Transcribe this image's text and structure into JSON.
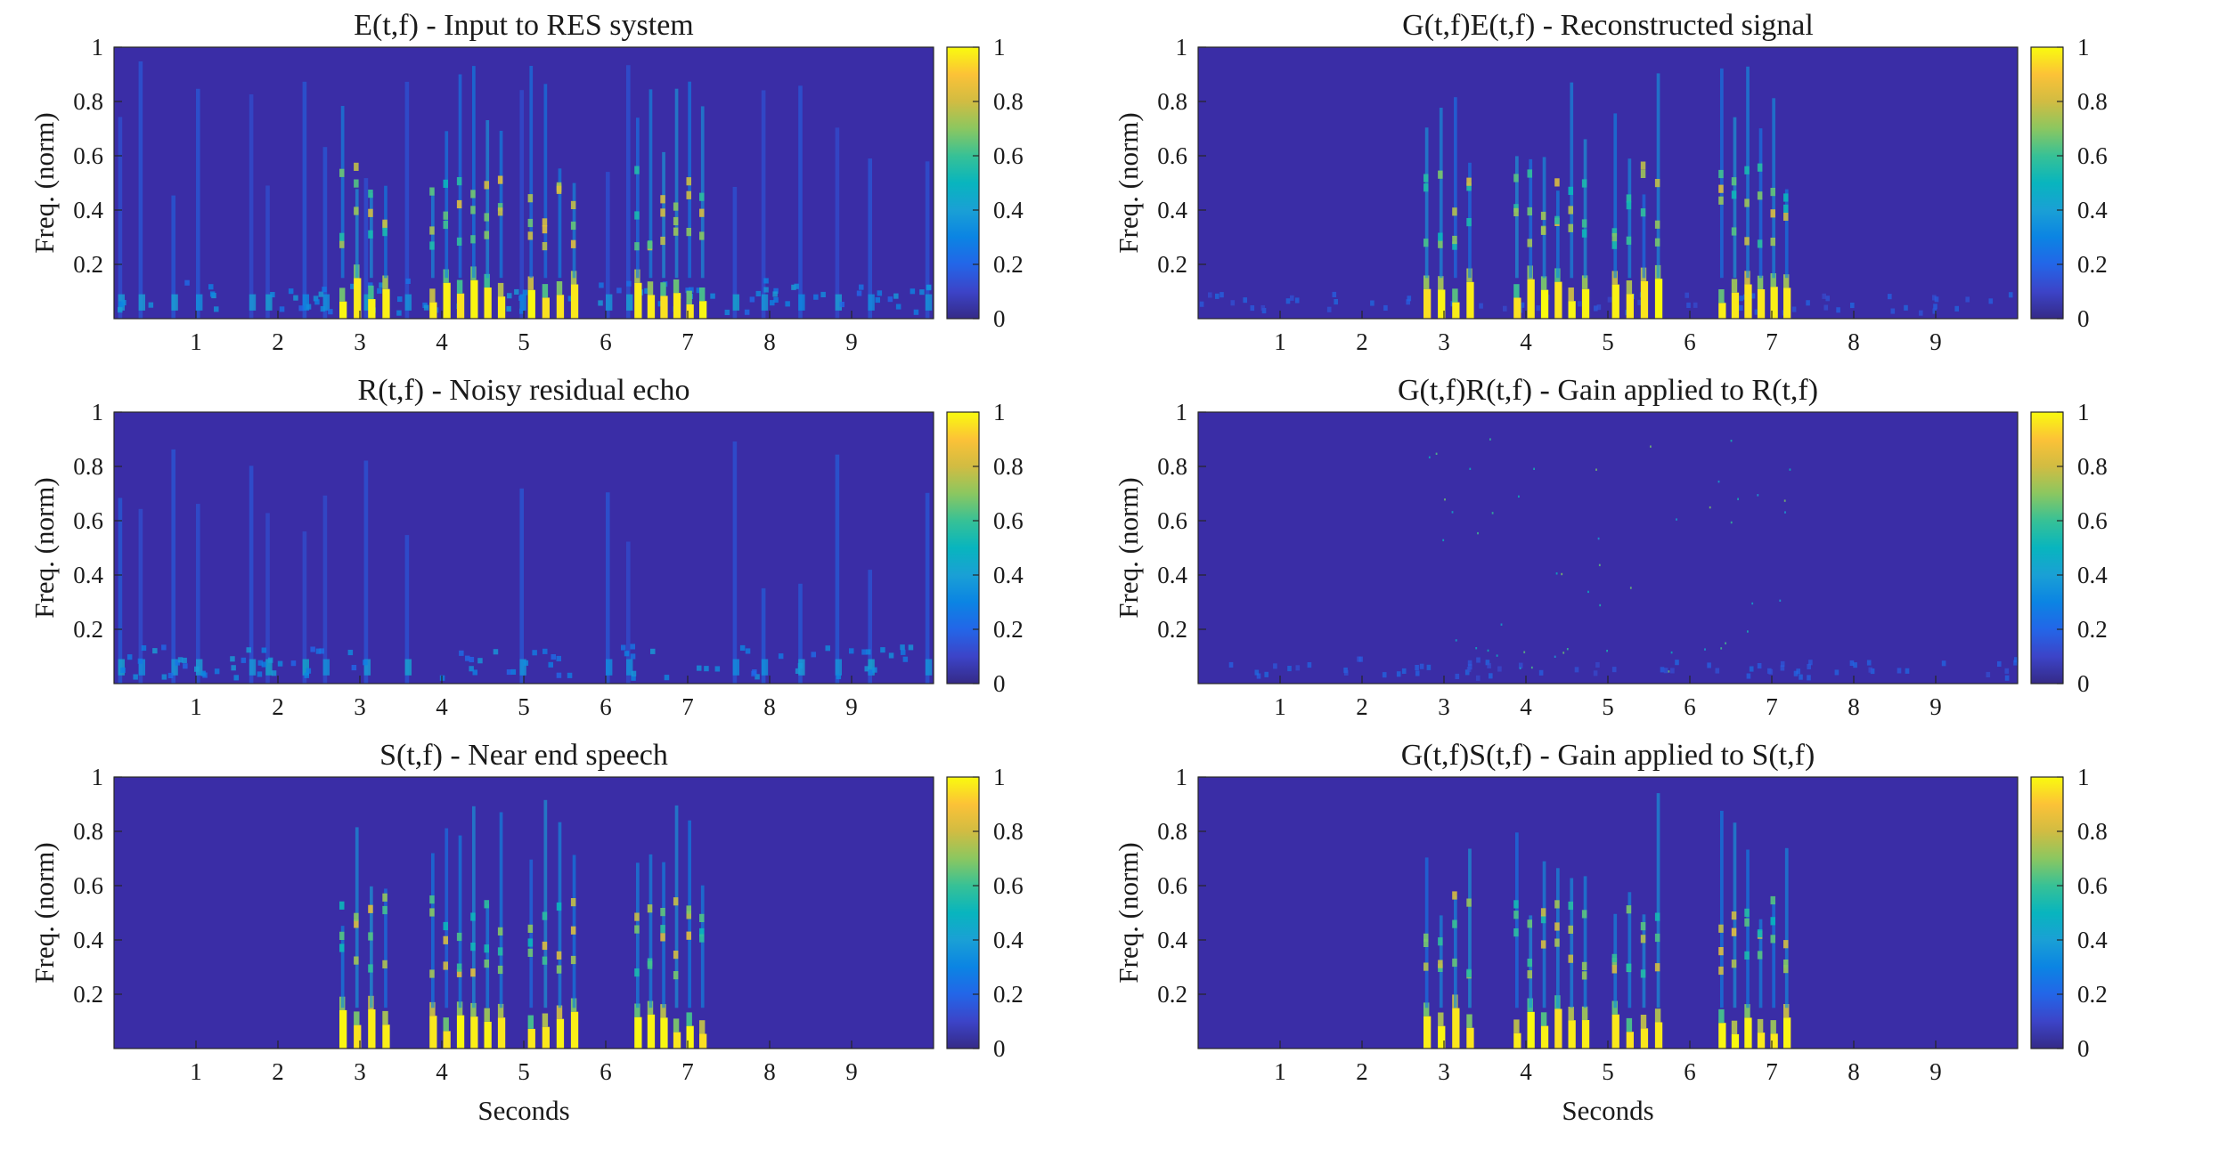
{
  "figure": {
    "colormap": "parula",
    "colors": {
      "background": "#3a2da6",
      "low": "#3e26a8",
      "mid": "#1fa1dd",
      "high": "#f9fb0e",
      "axis": "#262626"
    }
  },
  "chart_data": [
    {
      "type": "heatmap",
      "title": "E(t,f) - Input to RES system",
      "xlabel": "",
      "ylabel": "Freq. (norm)",
      "xlim": [
        0,
        10
      ],
      "ylim": [
        0,
        1
      ],
      "xticks": [
        "1",
        "2",
        "3",
        "4",
        "5",
        "6",
        "7",
        "8",
        "9"
      ],
      "yticks": [
        "0.2",
        "0.4",
        "0.6",
        "0.8",
        "1"
      ],
      "colorbar": {
        "ticks": [
          "0",
          "0.2",
          "0.4",
          "0.6",
          "0.8",
          "1"
        ],
        "range": [
          0,
          1
        ]
      },
      "content": "echo+speech"
    },
    {
      "type": "heatmap",
      "title": "G(t,f)E(t,f) - Reconstructed signal",
      "xlabel": "",
      "ylabel": "Freq. (norm)",
      "xlim": [
        0,
        10
      ],
      "ylim": [
        0,
        1
      ],
      "xticks": [
        "1",
        "2",
        "3",
        "4",
        "5",
        "6",
        "7",
        "8",
        "9"
      ],
      "yticks": [
        "0.2",
        "0.4",
        "0.6",
        "0.8",
        "1"
      ],
      "colorbar": {
        "ticks": [
          "0",
          "0.2",
          "0.4",
          "0.6",
          "0.8",
          "1"
        ],
        "range": [
          0,
          1
        ]
      },
      "content": "speech+faint"
    },
    {
      "type": "heatmap",
      "title": "R(t,f) - Noisy residual echo",
      "xlabel": "",
      "ylabel": "Freq. (norm)",
      "xlim": [
        0,
        10
      ],
      "ylim": [
        0,
        1
      ],
      "xticks": [
        "1",
        "2",
        "3",
        "4",
        "5",
        "6",
        "7",
        "8",
        "9"
      ],
      "yticks": [
        "0.2",
        "0.4",
        "0.6",
        "0.8",
        "1"
      ],
      "colorbar": {
        "ticks": [
          "0",
          "0.2",
          "0.4",
          "0.6",
          "0.8",
          "1"
        ],
        "range": [
          0,
          1
        ]
      },
      "content": "echo"
    },
    {
      "type": "heatmap",
      "title": "G(t,f)R(t,f) - Gain applied to R(t,f)",
      "xlabel": "",
      "ylabel": "Freq. (norm)",
      "xlim": [
        0,
        10
      ],
      "ylim": [
        0,
        1
      ],
      "xticks": [
        "1",
        "2",
        "3",
        "4",
        "5",
        "6",
        "7",
        "8",
        "9"
      ],
      "yticks": [
        "0.2",
        "0.4",
        "0.6",
        "0.8",
        "1"
      ],
      "colorbar": {
        "ticks": [
          "0",
          "0.2",
          "0.4",
          "0.6",
          "0.8",
          "1"
        ],
        "range": [
          0,
          1
        ]
      },
      "content": "faint"
    },
    {
      "type": "heatmap",
      "title": "S(t,f) - Near end speech",
      "xlabel": "Seconds",
      "ylabel": "Freq. (norm)",
      "xlim": [
        0,
        10
      ],
      "ylim": [
        0,
        1
      ],
      "xticks": [
        "1",
        "2",
        "3",
        "4",
        "5",
        "6",
        "7",
        "8",
        "9"
      ],
      "yticks": [
        "0.2",
        "0.4",
        "0.6",
        "0.8",
        "1"
      ],
      "colorbar": {
        "ticks": [
          "0",
          "0.2",
          "0.4",
          "0.6",
          "0.8",
          "1"
        ],
        "range": [
          0,
          1
        ]
      },
      "content": "speech"
    },
    {
      "type": "heatmap",
      "title": "G(t,f)S(t,f) - Gain applied to S(t,f)",
      "xlabel": "Seconds",
      "ylabel": "Freq. (norm)",
      "xlim": [
        0,
        10
      ],
      "ylim": [
        0,
        1
      ],
      "xticks": [
        "1",
        "2",
        "3",
        "4",
        "5",
        "6",
        "7",
        "8",
        "9"
      ],
      "yticks": [
        "0.2",
        "0.4",
        "0.6",
        "0.8",
        "1"
      ],
      "colorbar": {
        "ticks": [
          "0",
          "0.2",
          "0.4",
          "0.6",
          "0.8",
          "1"
        ],
        "range": [
          0,
          1
        ]
      },
      "content": "speech"
    }
  ]
}
